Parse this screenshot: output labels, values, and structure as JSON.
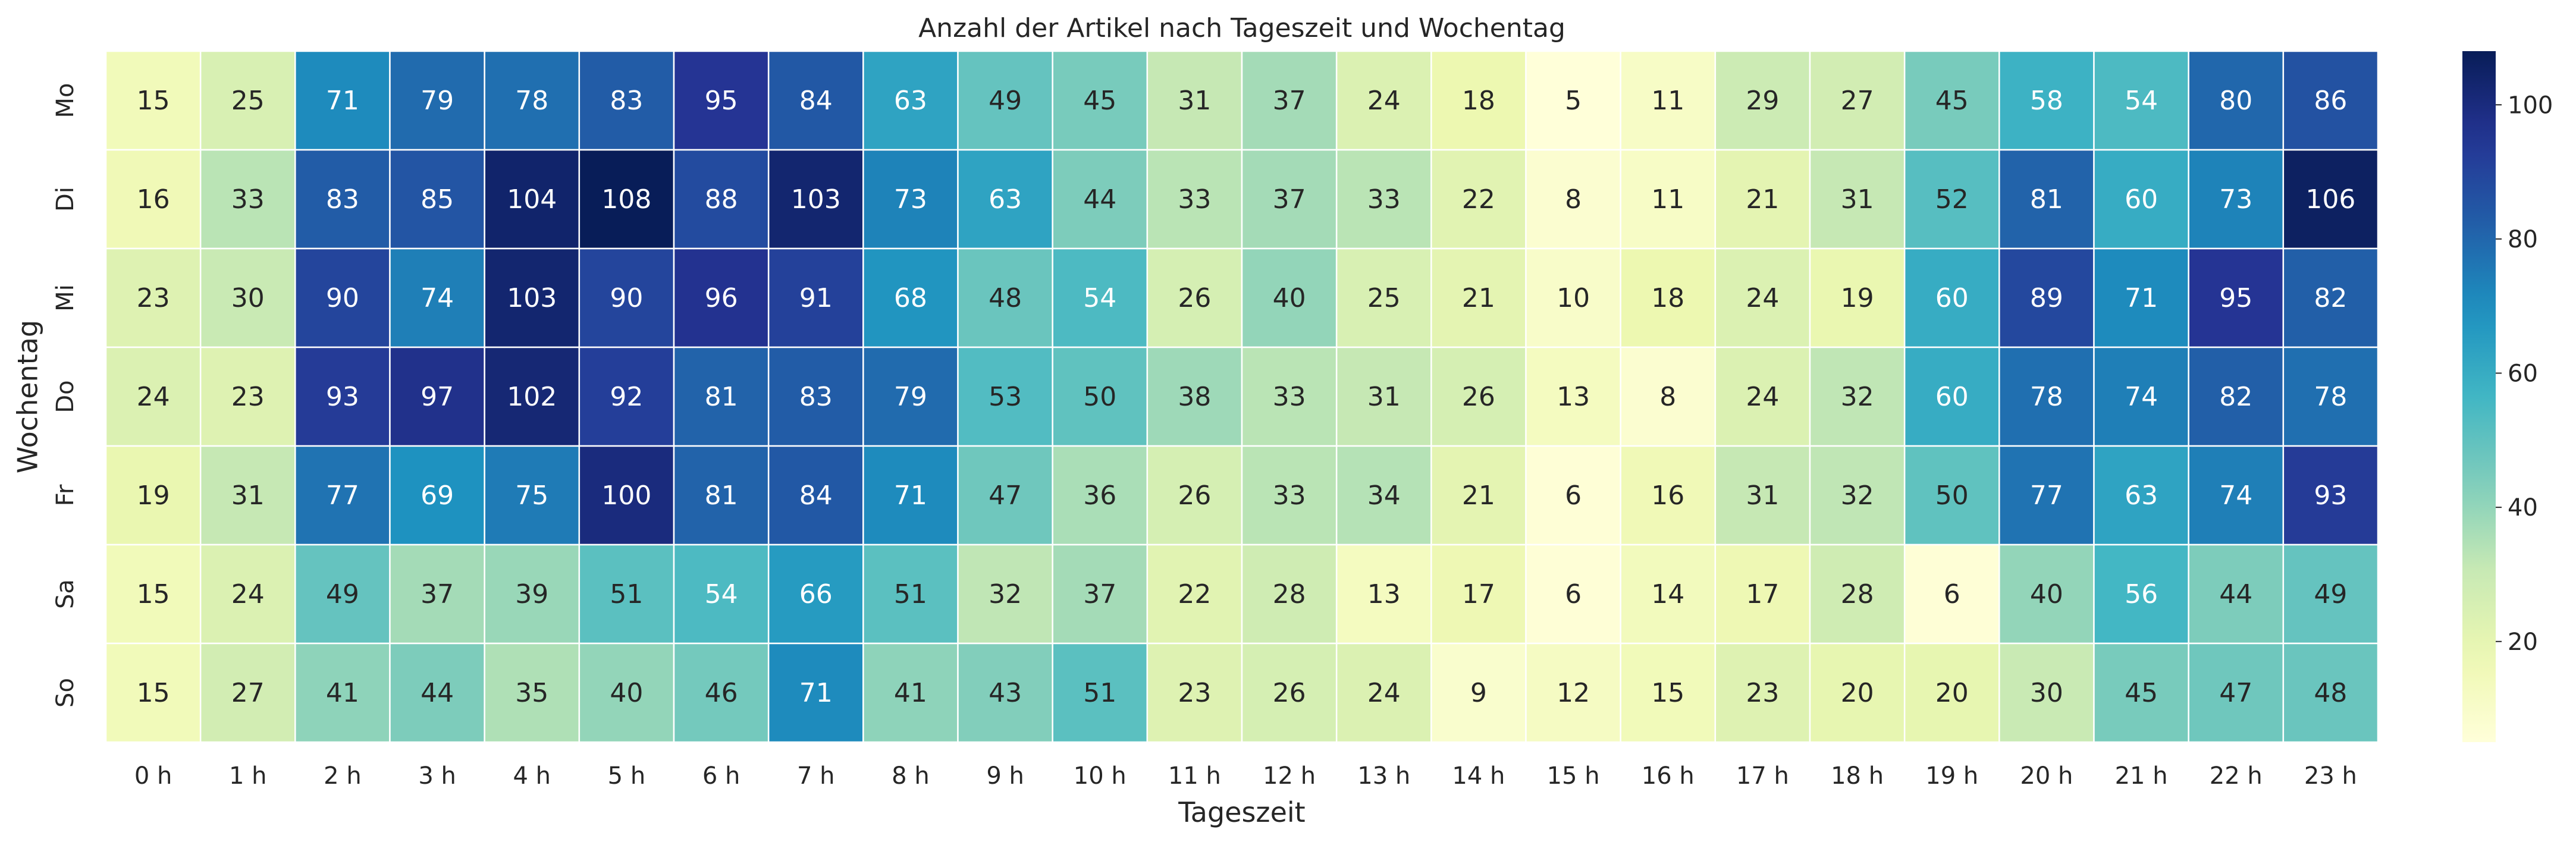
{
  "chart_data": {
    "type": "heatmap",
    "title": "Anzahl der Artikel nach Tageszeit und Wochentag",
    "xlabel": "Tageszeit",
    "ylabel": "Wochentag",
    "x_categories": [
      "0 h",
      "1 h",
      "2 h",
      "3 h",
      "4 h",
      "5 h",
      "6 h",
      "7 h",
      "8 h",
      "9 h",
      "10 h",
      "11 h",
      "12 h",
      "13 h",
      "14 h",
      "15 h",
      "16 h",
      "17 h",
      "18 h",
      "19 h",
      "20 h",
      "21 h",
      "22 h",
      "23 h"
    ],
    "y_categories": [
      "Mo",
      "Di",
      "Mi",
      "Do",
      "Fr",
      "Sa",
      "So"
    ],
    "values": [
      [
        15,
        25,
        71,
        79,
        78,
        83,
        95,
        84,
        63,
        49,
        45,
        31,
        37,
        24,
        18,
        5,
        11,
        29,
        27,
        45,
        58,
        54,
        80,
        86
      ],
      [
        16,
        33,
        83,
        85,
        104,
        108,
        88,
        103,
        73,
        63,
        44,
        33,
        37,
        33,
        22,
        8,
        11,
        21,
        31,
        52,
        81,
        60,
        73,
        106
      ],
      [
        23,
        30,
        90,
        74,
        103,
        90,
        96,
        91,
        68,
        48,
        54,
        26,
        40,
        25,
        21,
        10,
        18,
        24,
        19,
        60,
        89,
        71,
        95,
        82
      ],
      [
        24,
        23,
        93,
        97,
        102,
        92,
        81,
        83,
        79,
        53,
        50,
        38,
        33,
        31,
        26,
        13,
        8,
        24,
        32,
        60,
        78,
        74,
        82,
        78
      ],
      [
        19,
        31,
        77,
        69,
        75,
        100,
        81,
        84,
        71,
        47,
        36,
        26,
        33,
        34,
        21,
        6,
        16,
        31,
        32,
        50,
        77,
        63,
        74,
        93
      ],
      [
        15,
        24,
        49,
        37,
        39,
        51,
        54,
        66,
        51,
        32,
        37,
        22,
        28,
        13,
        17,
        6,
        14,
        17,
        28,
        6,
        40,
        56,
        44,
        49
      ],
      [
        15,
        27,
        41,
        44,
        35,
        40,
        46,
        71,
        41,
        43,
        51,
        23,
        26,
        24,
        9,
        12,
        15,
        23,
        20,
        20,
        30,
        45,
        47,
        48
      ]
    ],
    "colormap": "YlGnBu",
    "vmin": 5,
    "vmax": 108,
    "colorbar_ticks": [
      "20",
      "40",
      "60",
      "80",
      "100"
    ],
    "annotated": true
  }
}
